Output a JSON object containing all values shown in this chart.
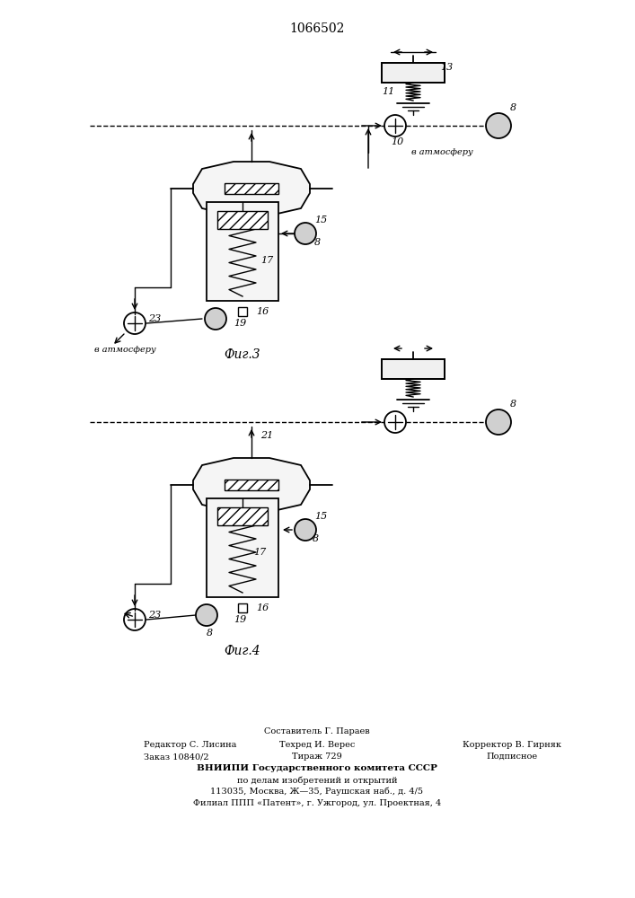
{
  "patent_number": "1066502",
  "fig3_label": "Фиг.3",
  "fig4_label": "Фиг.4",
  "footer_line1": "Составитель Г. Параев",
  "footer_line2_left": "Редактор С. Лисина",
  "footer_line2_mid": "Техред И. Верес",
  "footer_line2_right": "Корректор В. Гирняк",
  "footer_line3_left": "Заказ 10840/2",
  "footer_line3_mid": "Тираж 729",
  "footer_line3_right": "Подписное",
  "footer_vniip1": "ВНИИПИ Государственного комитета СССР",
  "footer_vniip2": "по делам изобретений и открытий",
  "footer_vniip3": "113035, Москва, Ж—35, Раушская наб., д. 4/5",
  "footer_vniip4": "Филиал ППП «Патент», г. Ужгород, ул. Проектная, 4",
  "bg_color": "#ffffff",
  "line_color": "#000000",
  "label_color": "#000000",
  "font_size_label": 8,
  "font_size_caption": 9,
  "font_size_footer": 7
}
